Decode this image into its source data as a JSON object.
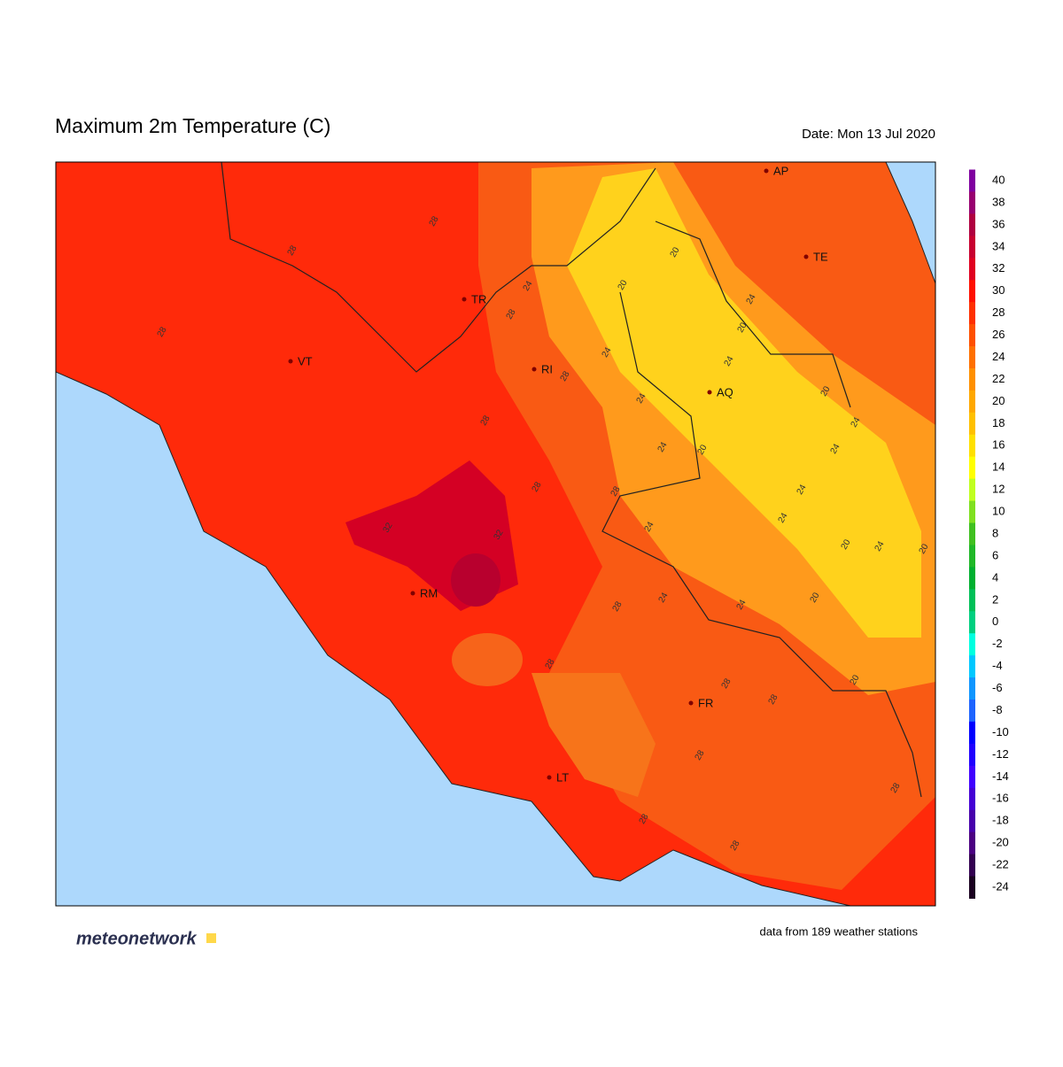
{
  "header": {
    "title": "Maximum 2m Temperature (C)",
    "date": "Date: Mon 13 Jul 2020"
  },
  "map": {
    "cities": [
      "AP",
      "TE",
      "TR",
      "VT",
      "RI",
      "AQ",
      "RM",
      "FR",
      "LT"
    ],
    "contour_labels": [
      28,
      28,
      24,
      28,
      28,
      24,
      20,
      20,
      24,
      20,
      24,
      28,
      20,
      24,
      28,
      24,
      24,
      20,
      24,
      24,
      28,
      28,
      24,
      32,
      32,
      24,
      20,
      24,
      20,
      28,
      24,
      24,
      20,
      28,
      20,
      28,
      28,
      28,
      28,
      28,
      28
    ]
  },
  "colorbar": {
    "ticks": [
      40,
      38,
      36,
      34,
      32,
      30,
      28,
      26,
      24,
      22,
      20,
      18,
      16,
      14,
      12,
      10,
      8,
      6,
      4,
      2,
      0,
      -2,
      -4,
      -6,
      -8,
      -10,
      -12,
      -14,
      -16,
      -18,
      -20,
      -22,
      -24
    ]
  },
  "footer": {
    "logo": "meteonetwork",
    "note": "data from 189 weather stations"
  }
}
